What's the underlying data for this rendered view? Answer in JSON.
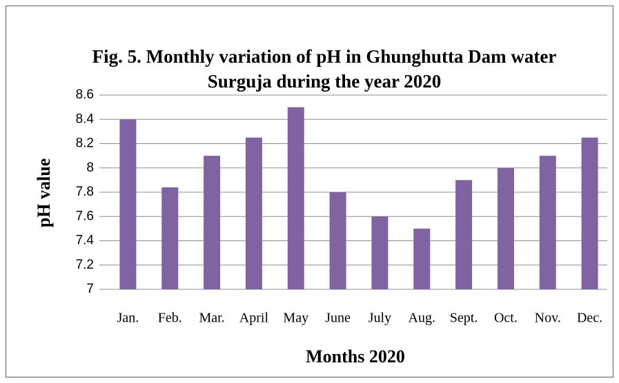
{
  "chart_data": {
    "type": "bar",
    "title": "Fig. 5. Monthly variation of pH in Ghunghutta Dam water Surguja during the year 2020",
    "x_label": "Months 2020",
    "y_label": "pH value",
    "categories": [
      "Jan.",
      "Feb.",
      "Mar.",
      "April",
      "May",
      "June",
      "July",
      "Aug.",
      "Sept.",
      "Oct.",
      "Nov.",
      "Dec."
    ],
    "values": [
      8.4,
      7.84,
      8.1,
      8.25,
      8.5,
      7.8,
      7.6,
      7.5,
      7.9,
      8.0,
      8.1,
      8.25
    ],
    "color": "#8064a2",
    "ylim": [
      7,
      8.6
    ],
    "yticks": [
      7,
      7.2,
      7.4,
      7.6,
      7.8,
      8,
      8.2,
      8.4,
      8.6
    ],
    "grid": true
  }
}
